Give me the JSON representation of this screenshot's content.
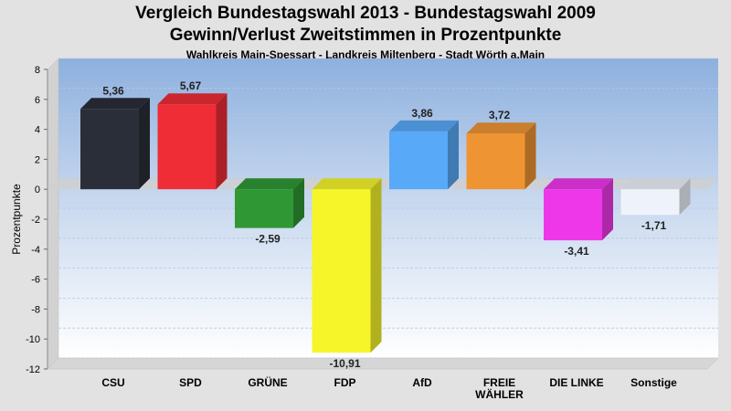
{
  "chart_data": {
    "type": "bar",
    "title": "Vergleich Bundestagswahl 2013 - Bundestagswahl 2009",
    "subtitle": "Gewinn/Verlust Zweitstimmen in Prozentpunkte",
    "subsubtitle": "Wahlkreis Main-Spessart - Landkreis Miltenberg - Stadt Wörth a.Main",
    "ylabel": "Prozentpunkte",
    "ylim": [
      -12,
      8
    ],
    "yticks": [
      8,
      6,
      4,
      2,
      0,
      -2,
      -4,
      -6,
      -8,
      -10,
      -12
    ],
    "categories": [
      "CSU",
      "SPD",
      "GRÜNE",
      "FDP",
      "AfD",
      "FREIE WÄHLER",
      "DIE LINKE",
      "Sonstige"
    ],
    "category_lines": [
      [
        "CSU"
      ],
      [
        "SPD"
      ],
      [
        "GRÜNE"
      ],
      [
        "FDP"
      ],
      [
        "AfD"
      ],
      [
        "FREIE",
        "WÄHLER"
      ],
      [
        "DIE LINKE"
      ],
      [
        "Sonstige"
      ]
    ],
    "values": [
      5.36,
      5.67,
      -2.59,
      -10.91,
      3.86,
      3.72,
      -3.41,
      -1.71
    ],
    "value_labels": [
      "5,36",
      "5,67",
      "-2,59",
      "-10,91",
      "3,86",
      "3,72",
      "-3,41",
      "-1,71"
    ],
    "colors": [
      "#2a2e38",
      "#ee2d36",
      "#2f9835",
      "#f6f52a",
      "#58a9f7",
      "#ef9433",
      "#ef37ea",
      "#eef2fa"
    ],
    "grid": true,
    "legend": "none"
  }
}
